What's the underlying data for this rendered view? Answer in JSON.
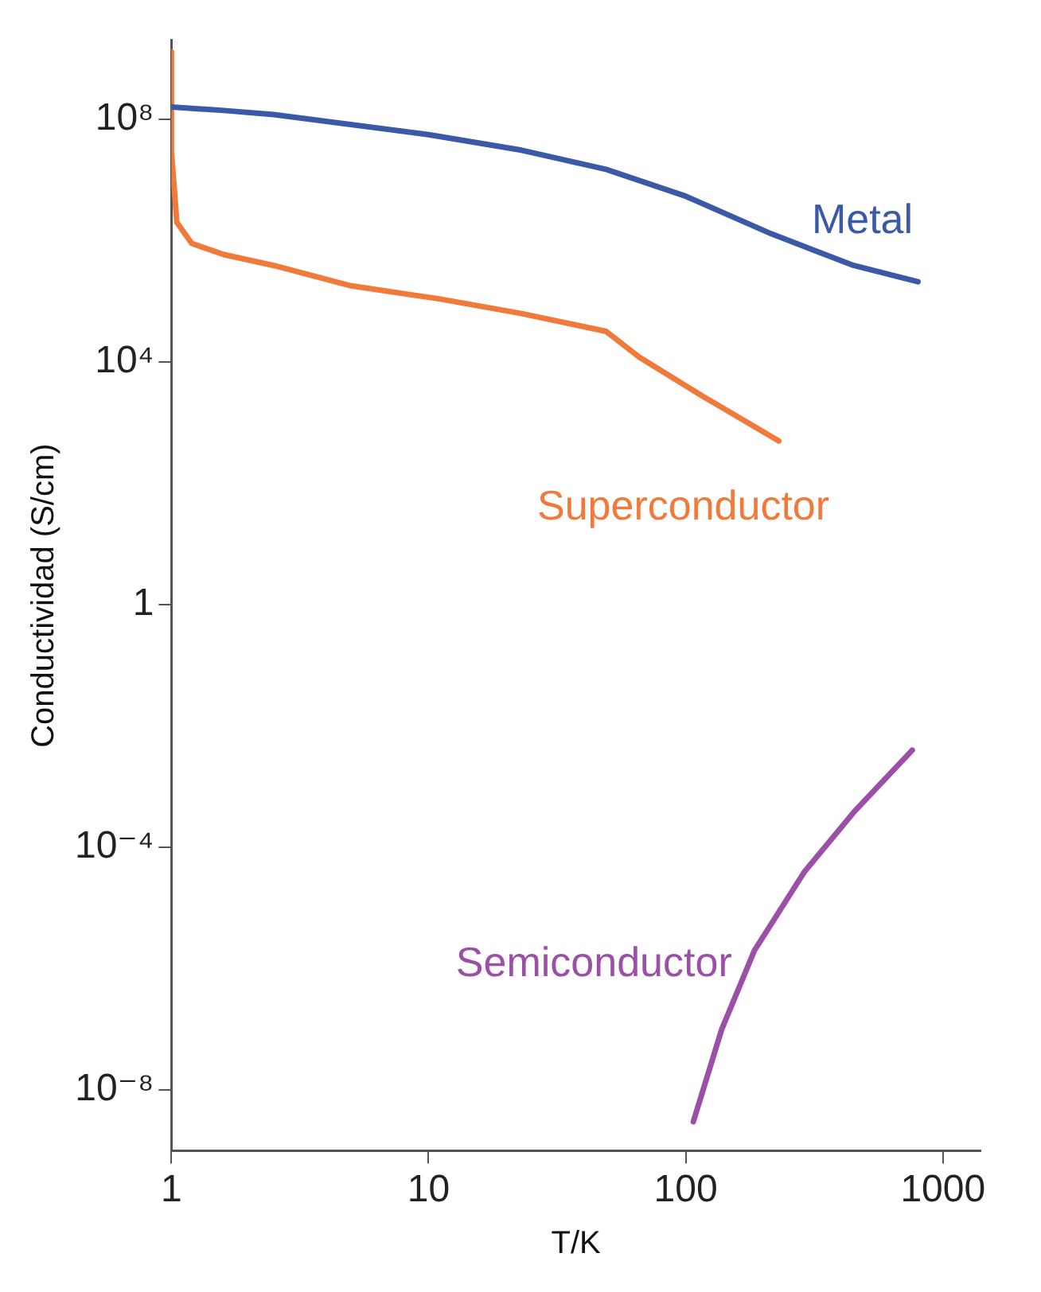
{
  "chart_data": {
    "type": "line",
    "xlabel": "T/K",
    "ylabel": "Conductividad (S/cm)",
    "log": "xy",
    "xlim": [
      1,
      1400
    ],
    "xticks": [
      1,
      10,
      100,
      1000
    ],
    "ylim": [
      1e-09,
      2000000000.0
    ],
    "yticks": [
      {
        "value": 100000000.0,
        "label": "10⁸"
      },
      {
        "value": 10000.0,
        "label": "10⁴"
      },
      1,
      {
        "value": 0.0001,
        "label": "10⁻⁴"
      },
      {
        "value": 1e-08,
        "label": "10⁻⁸"
      }
    ],
    "legend": false,
    "marker": "none",
    "line_style": "solid",
    "series": [
      {
        "name": "Metal",
        "color": "#3a5aa8",
        "x": [
          1,
          1.6,
          2.5,
          10,
          23,
          49,
          100,
          215,
          450,
          800
        ],
        "values": [
          160000000.0,
          140000000.0,
          120000000.0,
          56000000.0,
          31000000.0,
          15000000.0,
          5400000.0,
          1300000.0,
          390000.0,
          210000.0
        ]
      },
      {
        "name": "Superconductor",
        "color": "#f07a3a",
        "x": [
          1,
          1,
          1.05,
          1.2,
          1.6,
          2.5,
          5,
          11,
          23,
          49,
          66,
          117,
          230
        ],
        "values": [
          1300000000.0,
          30000000.0,
          2000000.0,
          900000.0,
          590000.0,
          390000.0,
          180000.0,
          110000.0,
          63000.0,
          32000.0,
          12000.0,
          2700.0,
          500.0
        ]
      },
      {
        "name": "Semiconductor",
        "color": "#9b4fa6",
        "x": [
          107,
          138,
          185,
          290,
          450,
          760
        ],
        "values": [
          3e-09,
          1e-07,
          2e-06,
          4e-05,
          0.00038,
          0.004
        ]
      }
    ]
  }
}
